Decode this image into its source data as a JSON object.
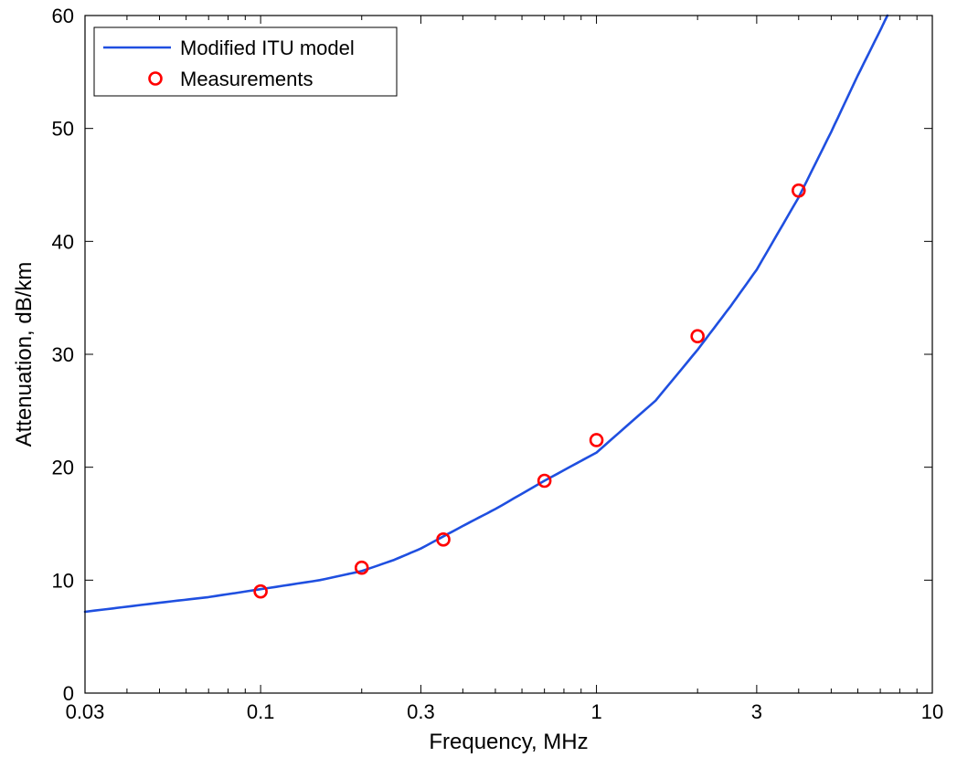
{
  "chart_data": {
    "type": "line",
    "xlabel": "Frequency, MHz",
    "ylabel": "Attenuation, dB/km",
    "xscale": "log",
    "xlim": [
      0.03,
      10
    ],
    "ylim": [
      0,
      60
    ],
    "xticks": [
      {
        "value": 0.03,
        "label": "0.03"
      },
      {
        "value": 0.1,
        "label": "0.1"
      },
      {
        "value": 0.3,
        "label": "0.3"
      },
      {
        "value": 1,
        "label": "1"
      },
      {
        "value": 3,
        "label": "3"
      },
      {
        "value": 10,
        "label": "10"
      }
    ],
    "yticks": [
      {
        "value": 0,
        "label": "0"
      },
      {
        "value": 10,
        "label": "10"
      },
      {
        "value": 20,
        "label": "20"
      },
      {
        "value": 30,
        "label": "30"
      },
      {
        "value": 40,
        "label": "40"
      },
      {
        "value": 50,
        "label": "50"
      },
      {
        "value": 60,
        "label": "60"
      }
    ],
    "grid": false,
    "legend_position": "top-left",
    "series": [
      {
        "name": "Modified ITU model",
        "style": "line",
        "color": "#1f4fe0",
        "x": [
          0.03,
          0.05,
          0.07,
          0.1,
          0.15,
          0.2,
          0.25,
          0.3,
          0.4,
          0.5,
          0.7,
          1.0,
          1.5,
          2.0,
          2.5,
          3.0,
          4.0,
          5.0,
          6.0,
          7.0,
          7.35
        ],
        "y": [
          7.2,
          8.0,
          8.5,
          9.2,
          10.0,
          10.8,
          11.8,
          12.8,
          14.8,
          16.3,
          18.8,
          21.3,
          25.9,
          30.4,
          34.2,
          37.5,
          43.9,
          49.7,
          54.7,
          58.7,
          60.0
        ]
      },
      {
        "name": "Measurements",
        "style": "markers",
        "marker": "circle",
        "color": "#ff0000",
        "x": [
          0.1,
          0.2,
          0.35,
          0.7,
          1.0,
          2.0,
          4.0
        ],
        "y": [
          9.0,
          11.1,
          13.6,
          18.8,
          22.4,
          31.6,
          44.5
        ]
      }
    ]
  }
}
